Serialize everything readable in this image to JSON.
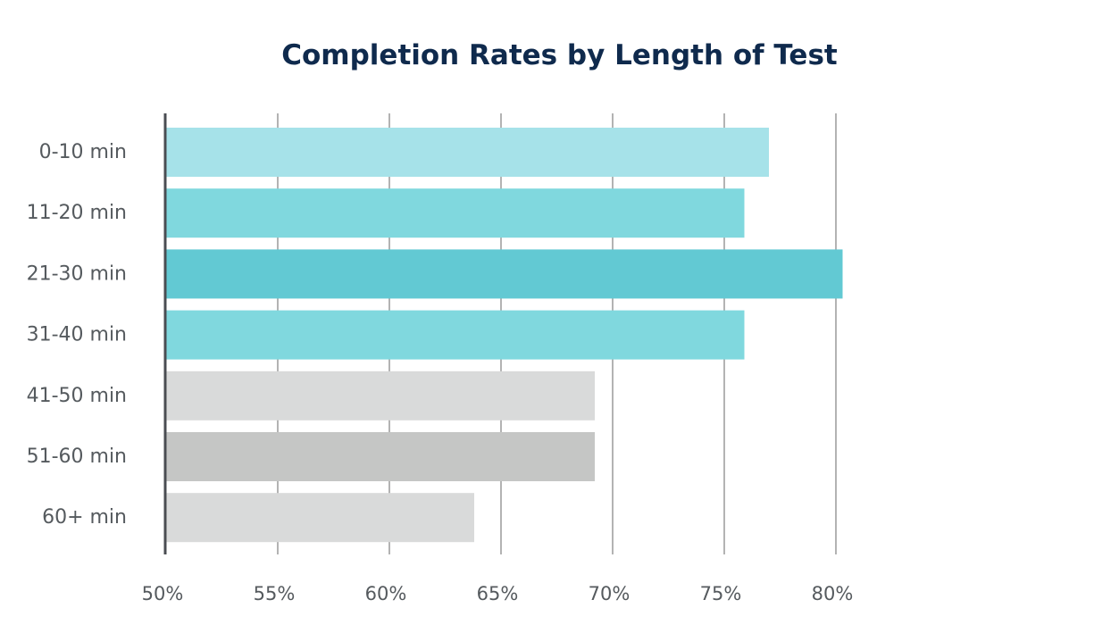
{
  "chart_data": {
    "type": "bar",
    "orientation": "horizontal",
    "title": "Completion Rates by Length of Test",
    "xlabel": "",
    "ylabel": "",
    "categories": [
      "0-10 min",
      "11-20 min",
      "21-30 min",
      "31-40 min",
      "41-50 min",
      "51-60 min",
      "60+ min"
    ],
    "values": [
      77.0,
      75.9,
      80.3,
      75.9,
      69.2,
      69.2,
      63.8
    ],
    "unit": "%",
    "xlim": [
      50,
      85
    ],
    "xticks": [
      50,
      55,
      60,
      65,
      70,
      75,
      80
    ],
    "xtick_labels": [
      "50%",
      "55%",
      "60%",
      "65%",
      "70%",
      "75%",
      "80%"
    ],
    "grid": "vertical",
    "legend": "none",
    "bar_colors": [
      "#a6e2e9",
      "#80d8de",
      "#62c9d3",
      "#80d8de",
      "#d9dada",
      "#c5c6c5",
      "#d9dada"
    ],
    "axis_color": "#4a4d52",
    "grid_color": "#b3b3b3",
    "title_color": "#0f2a4d",
    "label_color": "#555a5e"
  }
}
